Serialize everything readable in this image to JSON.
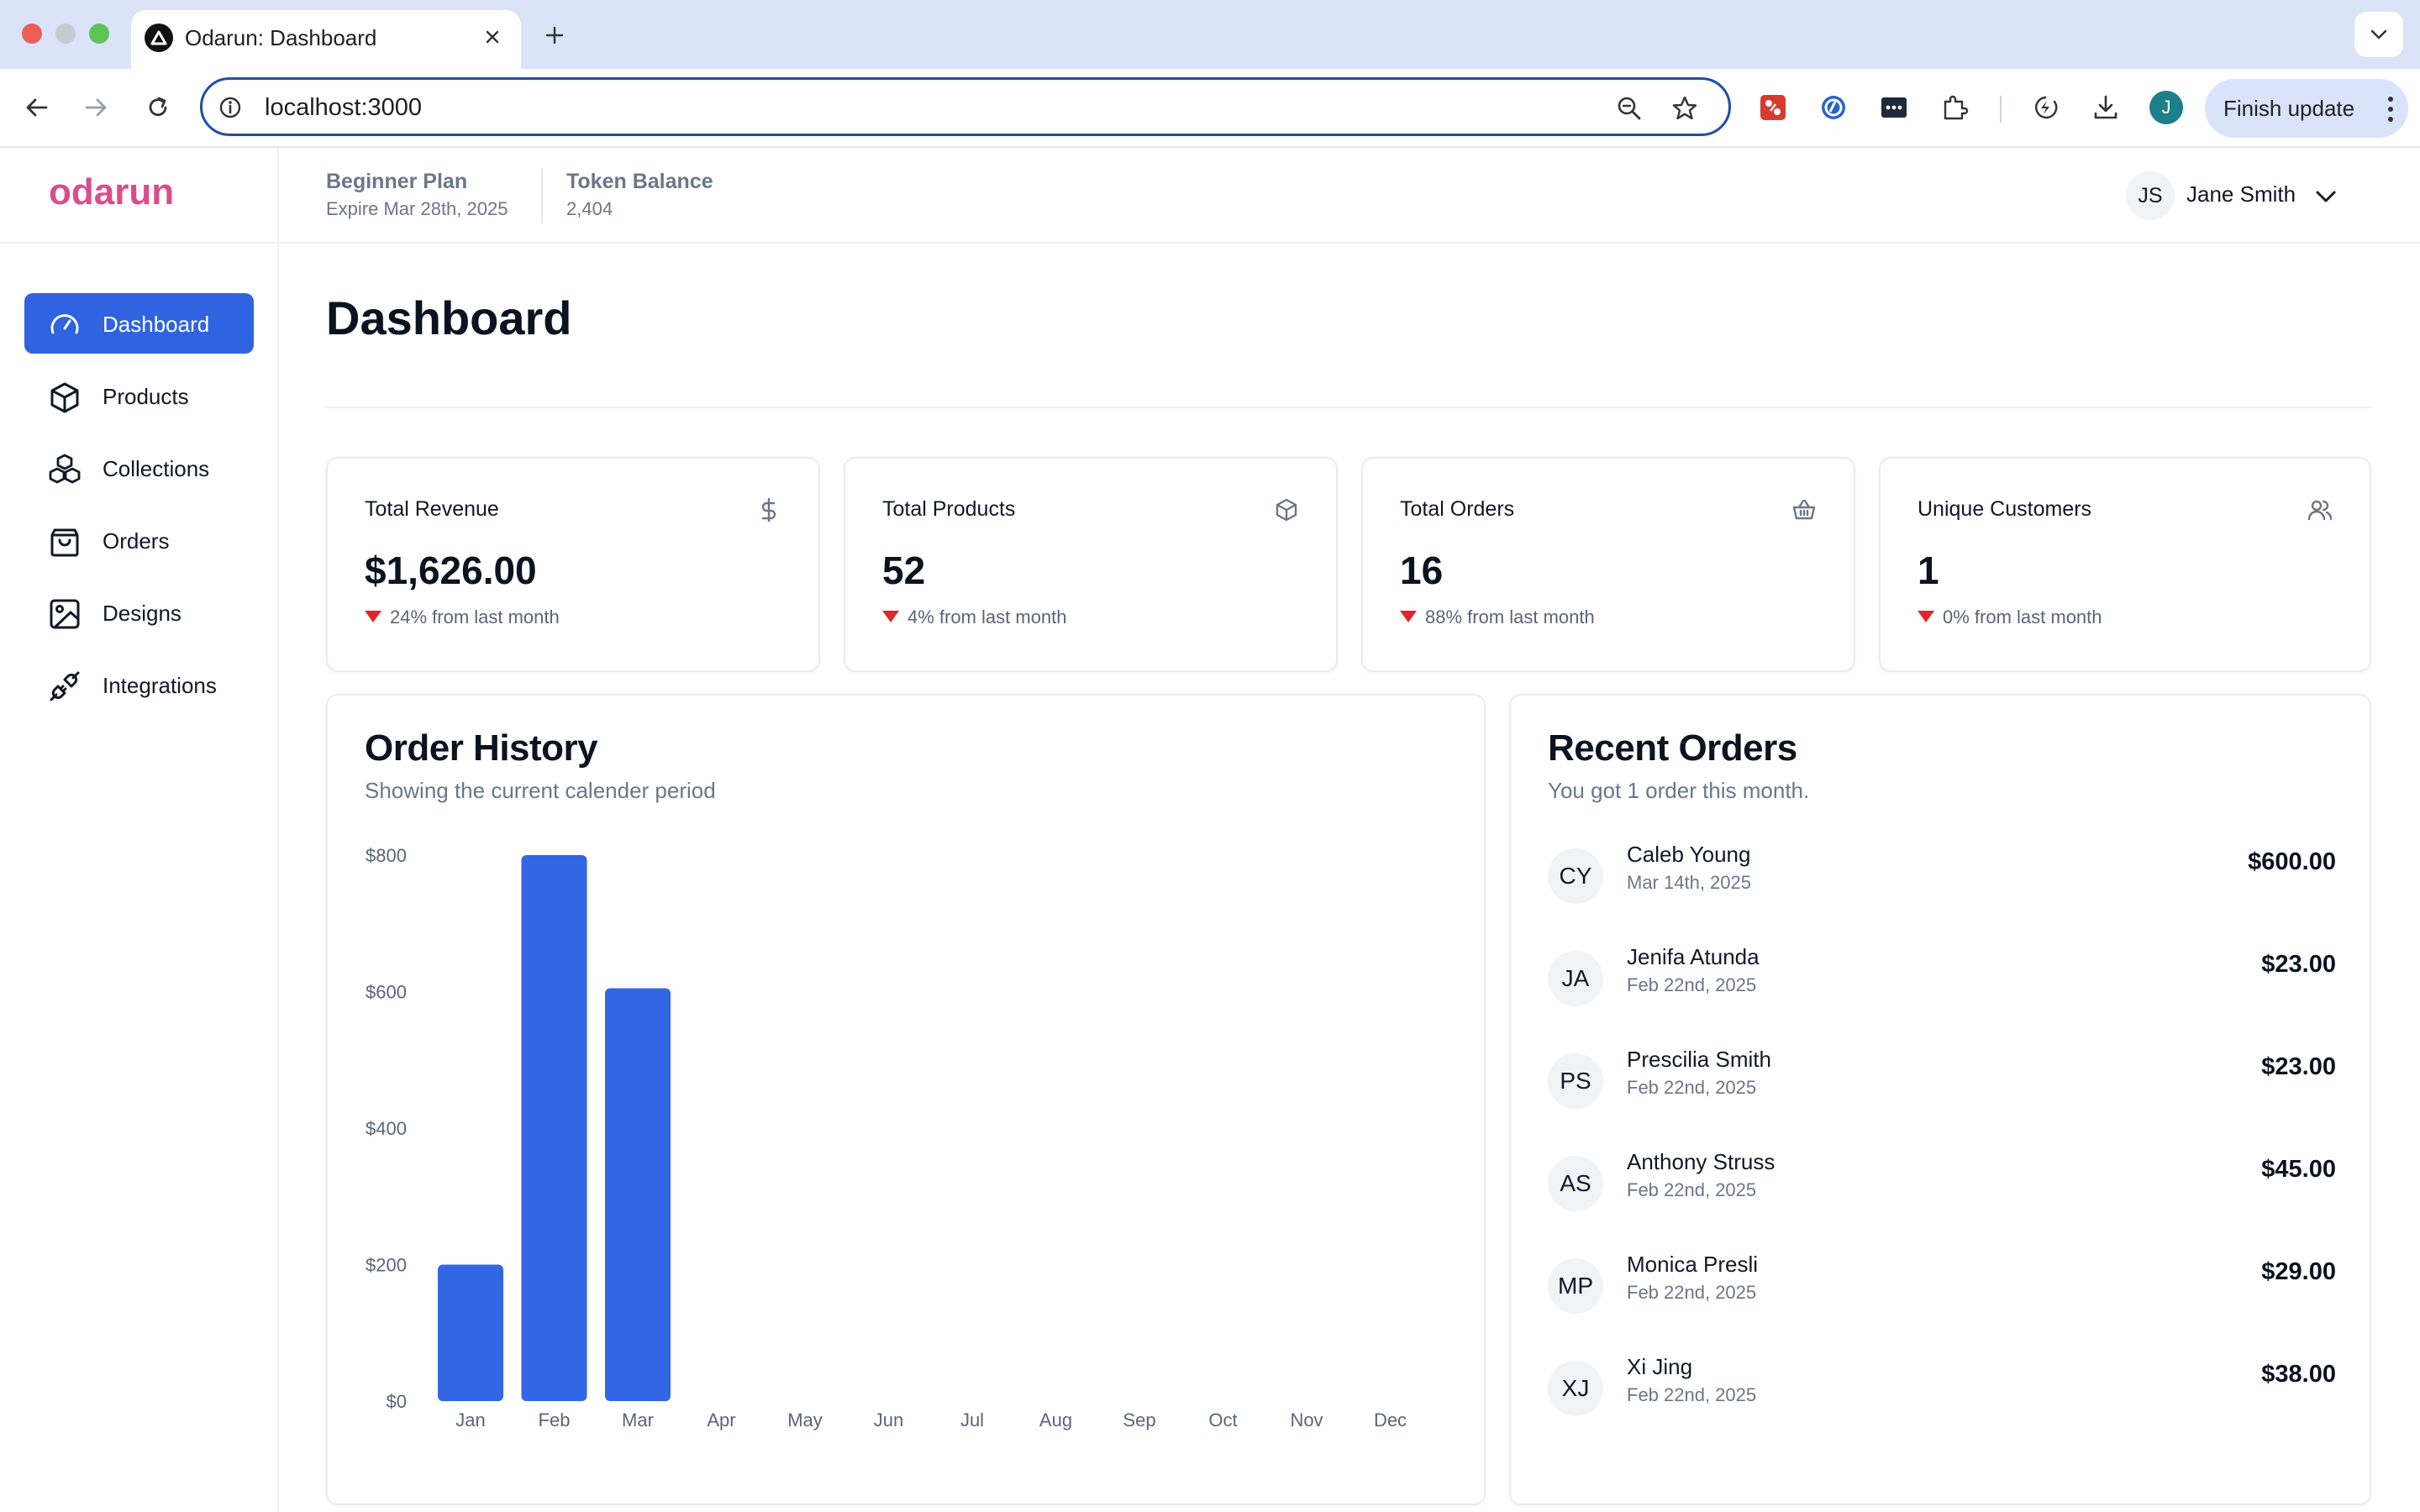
{
  "browser": {
    "tab_title": "Odarun: Dashboard",
    "url": "localhost:3000",
    "profile_initial": "J",
    "finish_update_label": "Finish update"
  },
  "header": {
    "brand": "odarun",
    "plan_title": "Beginner Plan",
    "plan_expiry": "Expire Mar 28th, 2025",
    "token_title": "Token Balance",
    "token_value": "2,404",
    "user_initials": "JS",
    "user_name": "Jane Smith"
  },
  "sidebar": {
    "items": [
      {
        "label": "Dashboard",
        "icon": "gauge-icon",
        "active": true
      },
      {
        "label": "Products",
        "icon": "box-icon",
        "active": false
      },
      {
        "label": "Collections",
        "icon": "boxes-icon",
        "active": false
      },
      {
        "label": "Orders",
        "icon": "shopping-bag-icon",
        "active": false
      },
      {
        "label": "Designs",
        "icon": "image-icon",
        "active": false
      },
      {
        "label": "Integrations",
        "icon": "plug-icon",
        "active": false
      }
    ]
  },
  "page": {
    "title": "Dashboard"
  },
  "stats": [
    {
      "title": "Total Revenue",
      "value": "$1,626.00",
      "trend": "24% from last month",
      "icon": "dollar-icon"
    },
    {
      "title": "Total Products",
      "value": "52",
      "trend": "4% from last month",
      "icon": "box-icon"
    },
    {
      "title": "Total Orders",
      "value": "16",
      "trend": "88% from last month",
      "icon": "basket-icon"
    },
    {
      "title": "Unique Customers",
      "value": "1",
      "trend": "0% from last month",
      "icon": "users-icon"
    }
  ],
  "order_history": {
    "title": "Order History",
    "subtitle": "Showing the current calender period"
  },
  "chart_data": {
    "type": "bar",
    "categories": [
      "Jan",
      "Feb",
      "Mar",
      "Apr",
      "May",
      "Jun",
      "Jul",
      "Aug",
      "Sep",
      "Oct",
      "Nov",
      "Dec"
    ],
    "values": [
      200,
      800,
      605,
      0,
      0,
      0,
      0,
      0,
      0,
      0,
      0,
      0
    ],
    "yticks": [
      "$0",
      "$200",
      "$400",
      "$600",
      "$800"
    ],
    "ylim": [
      0,
      800
    ],
    "bar_color": "#3366e3",
    "grid": false,
    "legend": false
  },
  "recent_orders": {
    "title": "Recent Orders",
    "subtitle": "You got 1 order this month.",
    "items": [
      {
        "initials": "CY",
        "name": "Caleb Young",
        "date": "Mar 14th, 2025",
        "amount": "$600.00"
      },
      {
        "initials": "JA",
        "name": "Jenifa Atunda",
        "date": "Feb 22nd, 2025",
        "amount": "$23.00"
      },
      {
        "initials": "PS",
        "name": "Prescilia Smith",
        "date": "Feb 22nd, 2025",
        "amount": "$23.00"
      },
      {
        "initials": "AS",
        "name": "Anthony Struss",
        "date": "Feb 22nd, 2025",
        "amount": "$45.00"
      },
      {
        "initials": "MP",
        "name": "Monica Presli",
        "date": "Feb 22nd, 2025",
        "amount": "$29.00"
      },
      {
        "initials": "XJ",
        "name": "Xi Jing",
        "date": "Feb 22nd, 2025",
        "amount": "$38.00"
      }
    ]
  },
  "colors": {
    "accent": "#2f63e0",
    "brand": "#db4c8b",
    "trend_down": "#e0262b"
  }
}
